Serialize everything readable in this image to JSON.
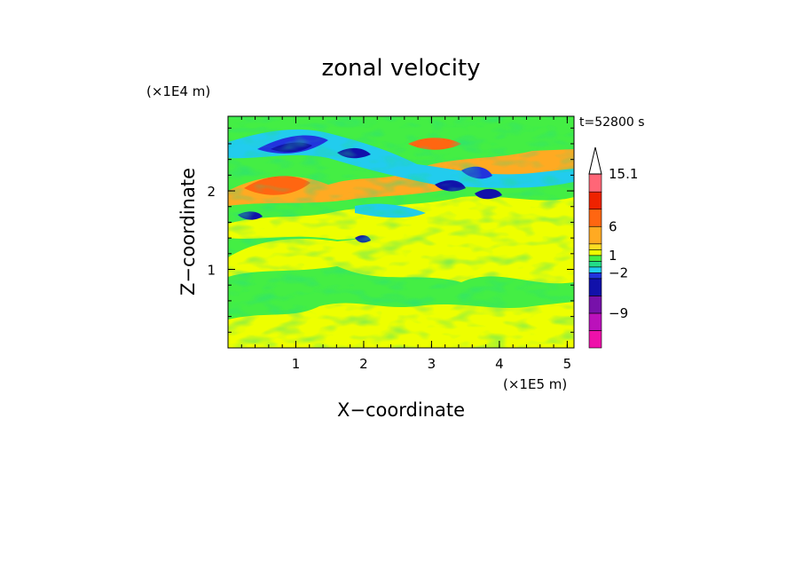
{
  "chart_data": {
    "type": "heatmap",
    "title": "zonal velocity",
    "xlabel": "X−coordinate",
    "ylabel": "Z−coordinate",
    "x_unit": "(×1E5 m)",
    "y_unit": "(×1E4 m)",
    "time_label": "t=52800 s",
    "xlim": [
      0,
      5.1
    ],
    "ylim": [
      0,
      2.95
    ],
    "x_ticks": [
      1,
      2,
      3,
      4,
      5
    ],
    "y_ticks": [
      1,
      2
    ],
    "colorbar": {
      "levels": [
        -15,
        -12,
        -9,
        -6,
        -3,
        -2,
        -1,
        0,
        1,
        2,
        3,
        6,
        9,
        12,
        15.1
      ],
      "tick_labels": [
        "15.1",
        "6",
        "1",
        "−2",
        "−9"
      ],
      "tick_values": [
        15.1,
        6,
        1,
        -2,
        -9
      ],
      "colors": [
        "#ee11aa",
        "#bb11bb",
        "#7711aa",
        "#1111aa",
        "#2233dd",
        "#22ccee",
        "#22dd88",
        "#44ee44",
        "#eeff00",
        "#ffdd22",
        "#ffaa22",
        "#ff6611",
        "#ee2200",
        "#ff6677",
        "#ffbbbb"
      ]
    },
    "field_summary": {
      "description_values": [
        {
          "z": 0.2,
          "u": 1
        },
        {
          "z": 0.7,
          "u": 0.5
        },
        {
          "z": 1.2,
          "u": 0
        },
        {
          "z": 1.7,
          "u": 1
        },
        {
          "z": 2.0,
          "u": 3
        },
        {
          "z": 2.3,
          "u": -3
        },
        {
          "z": 2.6,
          "u": 3
        },
        {
          "z": 2.9,
          "u": 0
        }
      ]
    }
  }
}
